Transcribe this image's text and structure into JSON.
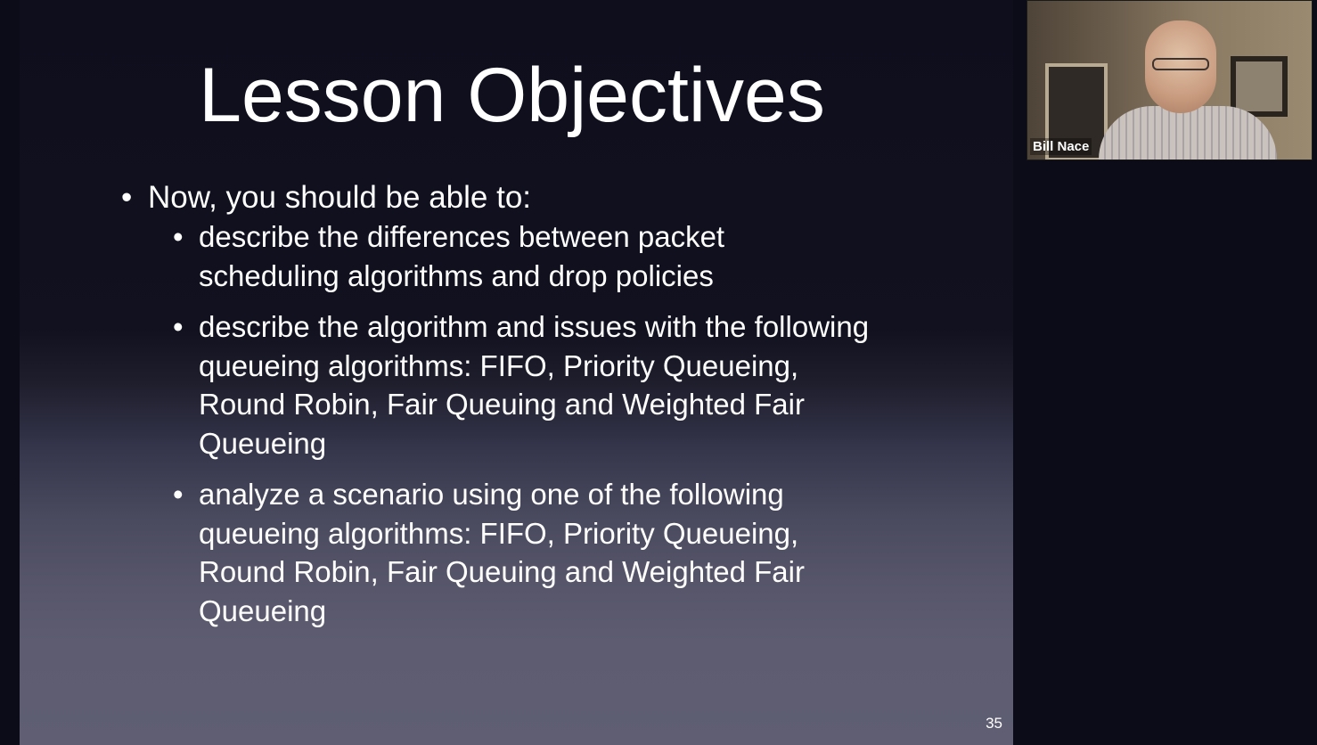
{
  "slide": {
    "title": "Lesson Objectives",
    "bullets": [
      {
        "text": "Now, you should be able to:",
        "sub": [
          "describe the differences between packet scheduling algorithms and drop policies",
          "describe the algorithm and issues with the following queueing algorithms: FIFO, Priority Queueing, Round Robin, Fair Queuing and Weighted Fair Queueing",
          "analyze a scenario using one of the following queueing algorithms: FIFO, Priority Queueing, Round Robin, Fair Queuing and Weighted Fair Queueing"
        ]
      }
    ],
    "page_number": "35"
  },
  "video": {
    "participant_name": "Bill Nace"
  },
  "colors": {
    "screen_background": "#0c0c18",
    "slide_top": "#0e0e1d",
    "slide_bottom": "#5f5e72",
    "text": "#ffffff"
  }
}
